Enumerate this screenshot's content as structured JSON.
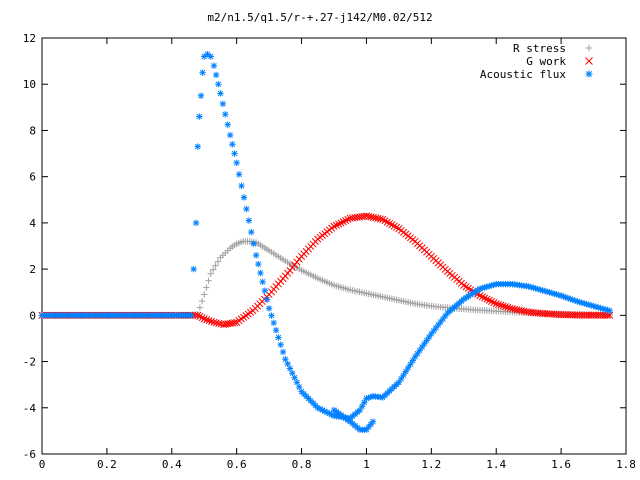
{
  "chart_data": {
    "type": "scatter",
    "title": "m2/n1.5/q1.5/r-+.27-j142/M0.02/512",
    "xlabel": "",
    "ylabel": "",
    "xlim": [
      0,
      1.8
    ],
    "ylim": [
      -6,
      12
    ],
    "xticks": [
      "0",
      "0.2",
      "0.4",
      "0.6",
      "0.8",
      "1",
      "1.2",
      "1.4",
      "1.6",
      "1.8"
    ],
    "yticks": [
      "-6",
      "-4",
      "-2",
      "0",
      "2",
      "4",
      "6",
      "8",
      "10",
      "12"
    ],
    "legend_position": "top-right",
    "grid": false,
    "series": [
      {
        "name": "R stress",
        "marker": "+",
        "color": "#a0a0a0",
        "x": [
          0.0,
          0.1,
          0.2,
          0.3,
          0.4,
          0.45,
          0.48,
          0.5,
          0.52,
          0.55,
          0.58,
          0.6,
          0.62,
          0.64,
          0.66,
          0.7,
          0.75,
          0.8,
          0.85,
          0.9,
          0.95,
          1.0,
          1.05,
          1.1,
          1.15,
          1.2,
          1.25,
          1.3,
          1.35,
          1.4,
          1.45,
          1.5,
          1.55,
          1.6,
          1.65,
          1.7,
          1.75
        ],
        "y": [
          0,
          0,
          0,
          0,
          0,
          0,
          0.05,
          0.9,
          1.8,
          2.5,
          2.9,
          3.1,
          3.2,
          3.2,
          3.15,
          2.8,
          2.35,
          1.95,
          1.6,
          1.3,
          1.1,
          0.95,
          0.8,
          0.65,
          0.5,
          0.4,
          0.33,
          0.27,
          0.22,
          0.18,
          0.14,
          0.1,
          0.08,
          0.06,
          0.04,
          0.03,
          0.02
        ]
      },
      {
        "name": "G work",
        "marker": "x",
        "color": "#ff0000",
        "x": [
          0.0,
          0.1,
          0.2,
          0.3,
          0.4,
          0.45,
          0.48,
          0.5,
          0.53,
          0.56,
          0.6,
          0.65,
          0.7,
          0.75,
          0.8,
          0.85,
          0.9,
          0.95,
          1.0,
          1.05,
          1.1,
          1.15,
          1.2,
          1.25,
          1.3,
          1.35,
          1.4,
          1.45,
          1.5,
          1.55,
          1.6,
          1.65,
          1.7,
          1.75
        ],
        "y": [
          0,
          0,
          0,
          0,
          0,
          0,
          0,
          -0.15,
          -0.3,
          -0.4,
          -0.3,
          0.2,
          0.9,
          1.7,
          2.55,
          3.3,
          3.85,
          4.2,
          4.3,
          4.15,
          3.75,
          3.2,
          2.55,
          1.9,
          1.3,
          0.85,
          0.5,
          0.28,
          0.14,
          0.07,
          0.03,
          0.01,
          0.005,
          0.0
        ]
      },
      {
        "name": "Acoustic flux",
        "marker": "*",
        "color": "#0080ff",
        "x": [
          0.0,
          0.1,
          0.2,
          0.3,
          0.4,
          0.46,
          0.475,
          0.48,
          0.485,
          0.49,
          0.495,
          0.5,
          0.51,
          0.52,
          0.53,
          0.55,
          0.58,
          0.6,
          0.63,
          0.66,
          0.7,
          0.75,
          0.8,
          0.85,
          0.9,
          0.95,
          0.98,
          1.0,
          1.02,
          1.05,
          1.1,
          1.15,
          1.2,
          1.25,
          1.3,
          1.35,
          1.4,
          1.45,
          1.5,
          1.55,
          1.6,
          1.65,
          1.7,
          1.75
        ],
        "y": [
          0,
          0,
          0,
          0,
          0,
          0,
          4.0,
          7.3,
          8.6,
          9.5,
          10.5,
          11.2,
          11.3,
          11.2,
          10.8,
          9.6,
          7.8,
          6.6,
          4.6,
          2.6,
          0.3,
          -1.9,
          -3.3,
          -4.0,
          -4.35,
          -4.45,
          -4.1,
          -3.6,
          -3.5,
          -3.55,
          -2.9,
          -1.8,
          -0.8,
          0.1,
          0.7,
          1.15,
          1.35,
          1.35,
          1.25,
          1.05,
          0.85,
          0.6,
          0.4,
          0.2
        ]
      },
      {
        "name": "",
        "marker": "*",
        "color": "#0080ff",
        "x": [
          0.9,
          0.95,
          0.98,
          1.0,
          1.02
        ],
        "y": [
          -4.1,
          -4.6,
          -4.95,
          -4.95,
          -4.6
        ]
      }
    ]
  }
}
